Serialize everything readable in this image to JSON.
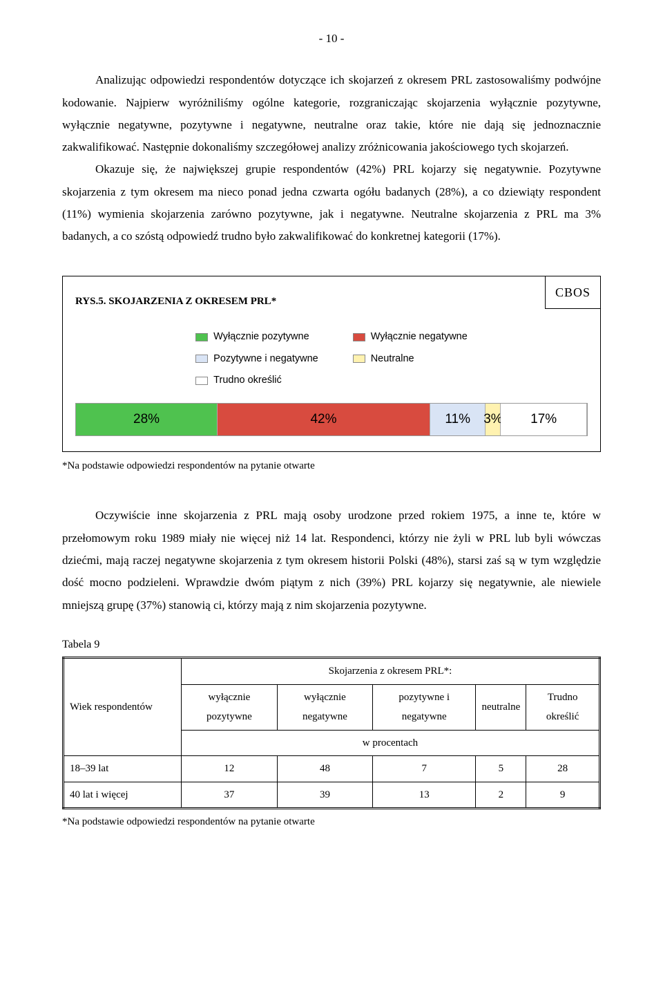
{
  "page_number": "- 10 -",
  "paragraph1": "Analizując odpowiedzi respondentów dotyczące ich skojarzeń z okresem PRL zastosowaliśmy podwójne kodowanie. Najpierw wyróżniliśmy ogólne kategorie, rozgraniczając skojarzenia wyłącznie pozytywne, wyłącznie negatywne, pozytywne i negatywne, neutralne oraz takie, które nie dają się jednoznacznie zakwalifikować. Następnie dokonaliśmy szczegółowej analizy zróżnicowania jakościowego tych skojarzeń.",
  "paragraph2": "Okazuje się, że największej grupie respondentów (42%) PRL kojarzy się negatywnie. Pozytywne skojarzenia z tym okresem ma nieco ponad jedna czwarta ogółu badanych (28%), a co dziewiąty respondent (11%) wymienia skojarzenia zarówno pozytywne, jak i negatywne. Neutralne skojarzenia z PRL ma 3% badanych, a co szóstą odpowiedź trudno było zakwalifikować do konkretnej kategorii (17%).",
  "chart": {
    "cbos_label": "CBOS",
    "title": "RYS.5. SKOJARZENIA Z OKRESEM PRL*",
    "legend": [
      {
        "label": "Wyłącznie pozytywne",
        "color": "#4fc24f"
      },
      {
        "label": "Wyłącznie negatywne",
        "color": "#d84b3f"
      },
      {
        "label": "Pozytywne i negatywne",
        "color": "#d9e4f5"
      },
      {
        "label": "Neutralne",
        "color": "#fff2b0"
      },
      {
        "label": "Trudno określić",
        "color": "#ffffff"
      }
    ],
    "segments": [
      {
        "value": 28,
        "label": "28%",
        "color": "#4fc24f"
      },
      {
        "value": 42,
        "label": "42%",
        "color": "#d84b3f"
      },
      {
        "value": 11,
        "label": "11%",
        "color": "#d9e4f5"
      },
      {
        "value": 3,
        "label": "3%",
        "color": "#fff2b0"
      },
      {
        "value": 17,
        "label": "17%",
        "color": "#ffffff"
      }
    ]
  },
  "footnote1": "*Na podstawie odpowiedzi respondentów na pytanie otwarte",
  "paragraph3": "Oczywiście inne skojarzenia z PRL mają osoby urodzone przed rokiem 1975, a inne te, które w przełomowym roku 1989 miały nie więcej niż 14 lat. Respondenci, którzy nie żyli w PRL lub byli wówczas dziećmi, mają raczej negatywne skojarzenia z tym okresem historii Polski (48%), starsi zaś są w tym względzie dość mocno podzieleni. Wprawdzie dwóm piątym z nich (39%) PRL kojarzy się negatywnie, ale niewiele mniejszą grupę (37%) stanowią ci, którzy mają z nim skojarzenia pozytywne.",
  "table": {
    "caption": "Tabela 9",
    "header_top": "Skojarzenia z okresem PRL*:",
    "row_header_title": "Wiek respondentów",
    "columns": [
      "wyłącznie pozytywne",
      "wyłącznie negatywne",
      "pozytywne i negatywne",
      "neutralne",
      "Trudno określić"
    ],
    "subheader": "w procentach",
    "rows": [
      {
        "label": "18–39 lat",
        "cells": [
          "12",
          "48",
          "7",
          "5",
          "28"
        ]
      },
      {
        "label": "40 lat i więcej",
        "cells": [
          "37",
          "39",
          "13",
          "2",
          "9"
        ]
      }
    ],
    "footnote": "*Na podstawie odpowiedzi respondentów na pytanie otwarte"
  }
}
